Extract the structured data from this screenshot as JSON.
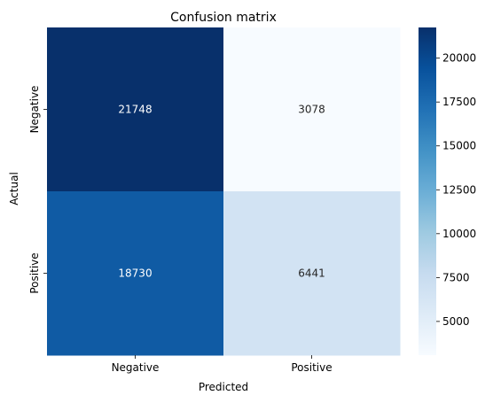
{
  "chart_data": {
    "type": "heatmap",
    "title": "Confusion matrix",
    "xlabel": "Predicted",
    "ylabel": "Actual",
    "x_categories": [
      "Negative",
      "Positive"
    ],
    "y_categories": [
      "Negative",
      "Positive"
    ],
    "values": [
      [
        21748,
        3078
      ],
      [
        18730,
        6441
      ]
    ],
    "colorscale": "Blues",
    "colorbar": {
      "min": 3078,
      "max": 21748,
      "ticks": [
        5000,
        7500,
        10000,
        12500,
        15000,
        17500,
        20000
      ],
      "tick_labels": [
        "5000",
        "7500",
        "10000",
        "12500",
        "15000",
        "17500",
        "20000"
      ]
    },
    "colors": {
      "cell_0_0": "#08306b",
      "cell_0_1": "#f7fbff",
      "cell_1_0": "#105ba4",
      "cell_1_1": "#d2e3f3",
      "dark_text": "#262626",
      "light_text": "#ffffff"
    }
  }
}
